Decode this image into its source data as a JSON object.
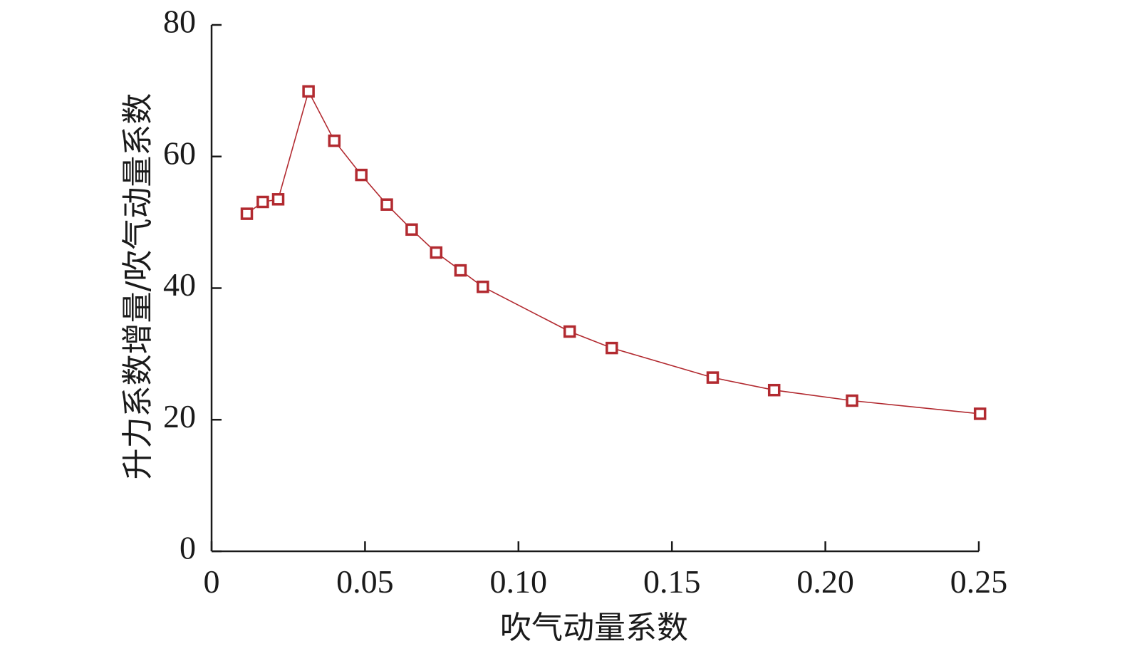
{
  "chart_data": {
    "type": "line",
    "xlabel": "吹气动量系数",
    "ylabel": "升力系数增量/吹气动量系数",
    "xlim": [
      0,
      0.25
    ],
    "ylim": [
      0,
      80
    ],
    "x_ticks": [
      {
        "value": 0,
        "label": "0"
      },
      {
        "value": 0.05,
        "label": "0.05"
      },
      {
        "value": 0.1,
        "label": "0.10"
      },
      {
        "value": 0.15,
        "label": "0.15"
      },
      {
        "value": 0.2,
        "label": "0.20"
      },
      {
        "value": 0.25,
        "label": "0.25"
      }
    ],
    "y_ticks": [
      {
        "value": 0,
        "label": "0"
      },
      {
        "value": 20,
        "label": "20"
      },
      {
        "value": 40,
        "label": "40"
      },
      {
        "value": 60,
        "label": "60"
      },
      {
        "value": 80,
        "label": "80"
      }
    ],
    "grid": false,
    "marker": "hollow-square",
    "color": "#b22a30",
    "series": [
      {
        "x": [
          0.0115,
          0.0167,
          0.0217,
          0.0316,
          0.04,
          0.0488,
          0.0571,
          0.0652,
          0.0732,
          0.0811,
          0.0884,
          0.1167,
          0.1304,
          0.1633,
          0.1833,
          0.2087,
          0.2504
        ],
        "y": [
          51.3,
          53.1,
          53.5,
          69.9,
          62.4,
          57.2,
          52.7,
          48.9,
          45.4,
          42.7,
          40.2,
          33.4,
          30.9,
          26.4,
          24.5,
          22.9,
          20.9
        ]
      }
    ]
  }
}
